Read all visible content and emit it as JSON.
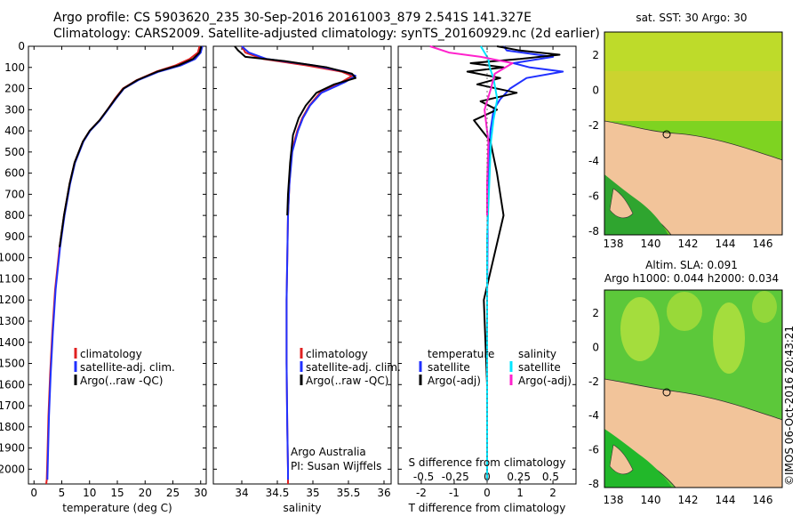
{
  "header": {
    "title_line1": "Argo profile: CS 5903620_235 30-Sep-2016 20161003_879 2.541S 141.327E",
    "title_line2": "Climatology: CARS2009. Satellite-adjusted climatology: synTS_20160929.nc (2d earlier)"
  },
  "colors": {
    "climatology": "#e02020",
    "satellite": "#2030ff",
    "argo": "#000000",
    "sat_diff": "#00e5ff",
    "argo_diff": "#ff22cc"
  },
  "legends": {
    "temp": {
      "items": [
        "climatology",
        "satellite-adj. clim.",
        "Argo(..raw -QC)"
      ]
    },
    "sal": {
      "items": [
        "climatology",
        "satellite-adj. clim.",
        "Argo(..raw -QC)"
      ]
    },
    "diff": {
      "col1_header": "temperature",
      "col2_header": "salinity",
      "col1_items": [
        "satellite",
        "Argo(-adj)"
      ],
      "col2_items": [
        "satellite",
        "Argo(-adj)"
      ]
    }
  },
  "notes": {
    "argo_australia": "Argo Australia",
    "pi": "PI: Susan Wijffels"
  },
  "maps": {
    "sst_title": "sat. SST: 30 Argo: 30",
    "sla_title1": "Altim. SLA: 0.091",
    "sla_title2": "Argo h1000: 0.044 h2000: 0.034",
    "xticks": [
      "138",
      "140",
      "142",
      "144",
      "146"
    ],
    "yticks": [
      "2",
      "0",
      "-2",
      "-4",
      "-6",
      "-8"
    ]
  },
  "credit": "©IMOS 06-Oct-2016 20:43:21",
  "chart_data": [
    {
      "type": "line",
      "name": "temperature",
      "xlabel": "temperature (deg C)",
      "ylabel": "",
      "xlim": [
        -1,
        31
      ],
      "ylim": [
        2070,
        0
      ],
      "xticks": [
        0,
        5,
        10,
        15,
        20,
        25,
        30
      ],
      "yticks": [
        0,
        100,
        200,
        300,
        400,
        500,
        600,
        700,
        800,
        900,
        1000,
        1100,
        1200,
        1300,
        1400,
        1500,
        1600,
        1700,
        1800,
        1900,
        2000
      ],
      "series": [
        {
          "name": "climatology",
          "x": [
            29.8,
            29.5,
            28.0,
            25.5,
            22.0,
            18.5,
            16.0,
            14.5,
            13.2,
            11.8,
            10.0,
            8.8,
            7.3,
            6.4,
            5.4,
            4.6,
            3.8,
            3.3,
            2.9,
            2.6,
            2.4,
            2.3,
            2.2
          ],
          "y": [
            0,
            30,
            60,
            90,
            120,
            160,
            200,
            250,
            300,
            350,
            400,
            450,
            550,
            650,
            800,
            950,
            1150,
            1350,
            1550,
            1750,
            1950,
            2050,
            2070
          ]
        },
        {
          "name": "satellite-adj. clim.",
          "x": [
            30.3,
            30.0,
            29.0,
            26.5,
            22.5,
            18.8,
            16.2,
            14.7,
            13.3,
            11.9,
            10.1,
            8.9,
            7.4,
            6.5,
            5.5,
            4.7,
            3.9,
            3.4,
            3.0,
            2.7,
            2.5,
            2.4
          ],
          "y": [
            0,
            30,
            60,
            90,
            120,
            160,
            200,
            250,
            300,
            350,
            400,
            450,
            550,
            650,
            800,
            950,
            1150,
            1350,
            1550,
            1750,
            1950,
            2050
          ]
        },
        {
          "name": "Argo(..raw -QC)",
          "x": [
            30.1,
            29.8,
            28.6,
            26.0,
            22.2,
            18.6,
            16.1,
            14.6,
            13.2,
            11.8,
            10.0,
            8.8,
            7.3,
            6.4,
            5.4,
            4.6
          ],
          "y": [
            0,
            30,
            60,
            90,
            120,
            160,
            200,
            250,
            300,
            350,
            400,
            450,
            550,
            650,
            800,
            950
          ]
        }
      ]
    },
    {
      "type": "line",
      "name": "salinity",
      "xlabel": "salinity",
      "ylabel": "",
      "xlim": [
        33.6,
        36.1
      ],
      "ylim": [
        2070,
        0
      ],
      "xticks": [
        34,
        34.5,
        35,
        35.5,
        36
      ],
      "series": [
        {
          "name": "climatology",
          "x": [
            34.0,
            34.05,
            34.3,
            34.9,
            35.4,
            35.55,
            35.4,
            35.1,
            34.95,
            34.85,
            34.78,
            34.7,
            34.67,
            34.65,
            34.64,
            34.63,
            34.63,
            34.64,
            34.65,
            34.65
          ],
          "y": [
            0,
            30,
            60,
            90,
            120,
            140,
            170,
            220,
            280,
            340,
            400,
            500,
            650,
            800,
            1000,
            1200,
            1500,
            1800,
            2000,
            2070
          ]
        },
        {
          "name": "satellite-adj. clim.",
          "x": [
            34.0,
            34.1,
            34.35,
            35.0,
            35.45,
            35.6,
            35.45,
            35.12,
            34.96,
            34.86,
            34.79,
            34.71,
            34.67,
            34.65,
            34.64,
            34.63,
            34.63,
            34.64,
            34.65,
            34.65
          ],
          "y": [
            0,
            30,
            60,
            90,
            120,
            140,
            170,
            220,
            280,
            340,
            400,
            500,
            650,
            800,
            1000,
            1200,
            1500,
            1800,
            2000,
            2050
          ]
        },
        {
          "name": "Argo(..raw -QC)",
          "x": [
            33.9,
            33.95,
            34.05,
            34.6,
            35.2,
            35.55,
            35.6,
            35.3,
            35.05,
            34.9,
            34.8,
            34.72,
            34.68,
            34.65,
            34.64
          ],
          "y": [
            0,
            20,
            50,
            70,
            100,
            130,
            150,
            180,
            220,
            280,
            340,
            420,
            550,
            700,
            800
          ]
        }
      ]
    },
    {
      "type": "line",
      "name": "difference from climatology",
      "xlabel": "T difference from climatology",
      "x2label": "S difference from climatology",
      "xlim": [
        -2.7,
        2.7
      ],
      "x2lim": [
        -0.7,
        0.7
      ],
      "ylim": [
        2070,
        0
      ],
      "xticks": [
        -2,
        -1,
        0,
        1,
        2
      ],
      "x2ticks": [
        -0.5,
        -0.25,
        0,
        0.25,
        0.5
      ],
      "series": [
        {
          "name": "temperature satellite",
          "axis": "T",
          "x": [
            0.5,
            0.6,
            2.0,
            0.8,
            1.3,
            2.3,
            1.2,
            0.7,
            0.4,
            0.2,
            0.1,
            0.05,
            0.02,
            0.0,
            0.0,
            0.0
          ],
          "y": [
            0,
            20,
            50,
            80,
            100,
            120,
            150,
            200,
            250,
            300,
            400,
            600,
            800,
            1200,
            1600,
            2050
          ]
        },
        {
          "name": "temperature Argo(-adj)",
          "axis": "T",
          "x": [
            0.3,
            1.0,
            2.2,
            1.0,
            -0.5,
            0.5,
            -0.6,
            0.4,
            -0.3,
            0.9,
            -0.2,
            0.3,
            -0.4,
            0.1,
            0.3,
            0.5,
            0.2,
            -0.1,
            0.0,
            0.0
          ],
          "y": [
            0,
            20,
            40,
            60,
            80,
            100,
            120,
            150,
            180,
            220,
            260,
            300,
            350,
            450,
            600,
            800,
            1000,
            1200,
            1600,
            2050
          ]
        },
        {
          "name": "salinity satellite",
          "axis": "S",
          "x": [
            -0.05,
            0.01,
            0.02,
            0.05,
            0.08,
            0.05,
            0.03,
            0.02,
            0.0,
            0.0
          ],
          "y": [
            0,
            60,
            100,
            150,
            250,
            350,
            450,
            600,
            900,
            2050
          ]
        },
        {
          "name": "salinity Argo(-adj)",
          "axis": "S",
          "x": [
            -0.45,
            -0.3,
            -0.05,
            0.2,
            0.06,
            0.03,
            -0.02,
            0.01,
            0.0,
            0.0
          ],
          "y": [
            0,
            30,
            50,
            80,
            130,
            200,
            300,
            450,
            650,
            800
          ]
        }
      ]
    }
  ]
}
